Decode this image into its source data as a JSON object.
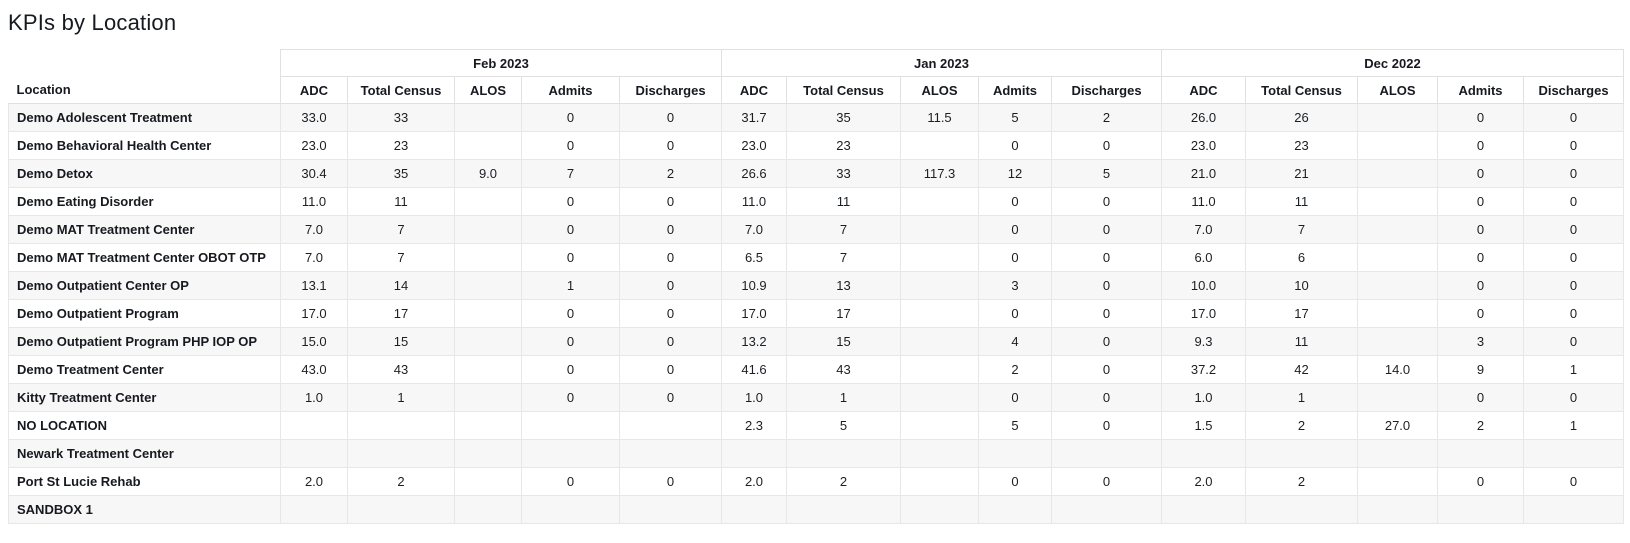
{
  "page_title": "KPIs by Location",
  "colors": {
    "zebra_row": "#f7f7f7",
    "border": "#e0e0e0",
    "text": "#16191f"
  },
  "table": {
    "location_header": "Location",
    "groups": [
      {
        "label": "Feb 2023",
        "columns": [
          "ADC",
          "Total Census",
          "ALOS",
          "Admits",
          "Discharges"
        ]
      },
      {
        "label": "Jan 2023",
        "columns": [
          "ADC",
          "Total Census",
          "ALOS",
          "Admits",
          "Discharges"
        ]
      },
      {
        "label": "Dec 2022",
        "columns": [
          "ADC",
          "Total Census",
          "ALOS",
          "Admits",
          "Discharges"
        ]
      }
    ],
    "rows": [
      {
        "location": "Demo Adolescent Treatment",
        "values": [
          "33.0",
          "33",
          "",
          "0",
          "0",
          "31.7",
          "35",
          "11.5",
          "5",
          "2",
          "26.0",
          "26",
          "",
          "0",
          "0"
        ]
      },
      {
        "location": "Demo Behavioral Health Center",
        "values": [
          "23.0",
          "23",
          "",
          "0",
          "0",
          "23.0",
          "23",
          "",
          "0",
          "0",
          "23.0",
          "23",
          "",
          "0",
          "0"
        ]
      },
      {
        "location": "Demo Detox",
        "values": [
          "30.4",
          "35",
          "9.0",
          "7",
          "2",
          "26.6",
          "33",
          "117.3",
          "12",
          "5",
          "21.0",
          "21",
          "",
          "0",
          "0"
        ]
      },
      {
        "location": "Demo Eating Disorder",
        "values": [
          "11.0",
          "11",
          "",
          "0",
          "0",
          "11.0",
          "11",
          "",
          "0",
          "0",
          "11.0",
          "11",
          "",
          "0",
          "0"
        ]
      },
      {
        "location": "Demo MAT Treatment Center",
        "values": [
          "7.0",
          "7",
          "",
          "0",
          "0",
          "7.0",
          "7",
          "",
          "0",
          "0",
          "7.0",
          "7",
          "",
          "0",
          "0"
        ]
      },
      {
        "location": "Demo MAT Treatment Center OBOT OTP",
        "values": [
          "7.0",
          "7",
          "",
          "0",
          "0",
          "6.5",
          "7",
          "",
          "0",
          "0",
          "6.0",
          "6",
          "",
          "0",
          "0"
        ]
      },
      {
        "location": "Demo Outpatient Center OP",
        "values": [
          "13.1",
          "14",
          "",
          "1",
          "0",
          "10.9",
          "13",
          "",
          "3",
          "0",
          "10.0",
          "10",
          "",
          "0",
          "0"
        ]
      },
      {
        "location": "Demo Outpatient Program",
        "values": [
          "17.0",
          "17",
          "",
          "0",
          "0",
          "17.0",
          "17",
          "",
          "0",
          "0",
          "17.0",
          "17",
          "",
          "0",
          "0"
        ]
      },
      {
        "location": "Demo Outpatient Program PHP IOP OP",
        "values": [
          "15.0",
          "15",
          "",
          "0",
          "0",
          "13.2",
          "15",
          "",
          "4",
          "0",
          "9.3",
          "11",
          "",
          "3",
          "0"
        ]
      },
      {
        "location": "Demo Treatment Center",
        "values": [
          "43.0",
          "43",
          "",
          "0",
          "0",
          "41.6",
          "43",
          "",
          "2",
          "0",
          "37.2",
          "42",
          "14.0",
          "9",
          "1"
        ]
      },
      {
        "location": "Kitty Treatment Center",
        "values": [
          "1.0",
          "1",
          "",
          "0",
          "0",
          "1.0",
          "1",
          "",
          "0",
          "0",
          "1.0",
          "1",
          "",
          "0",
          "0"
        ]
      },
      {
        "location": "NO LOCATION",
        "values": [
          "",
          "",
          "",
          "",
          "",
          "2.3",
          "5",
          "",
          "5",
          "0",
          "1.5",
          "2",
          "27.0",
          "2",
          "1"
        ]
      },
      {
        "location": "Newark Treatment Center",
        "values": [
          "",
          "",
          "",
          "",
          "",
          "",
          "",
          "",
          "",
          "",
          "",
          "",
          "",
          "",
          ""
        ]
      },
      {
        "location": "Port St Lucie Rehab",
        "values": [
          "2.0",
          "2",
          "",
          "0",
          "0",
          "2.0",
          "2",
          "",
          "0",
          "0",
          "2.0",
          "2",
          "",
          "0",
          "0"
        ]
      },
      {
        "location": "SANDBOX 1",
        "values": [
          "",
          "",
          "",
          "",
          "",
          "",
          "",
          "",
          "",
          "",
          "",
          "",
          "",
          "",
          ""
        ]
      }
    ]
  }
}
